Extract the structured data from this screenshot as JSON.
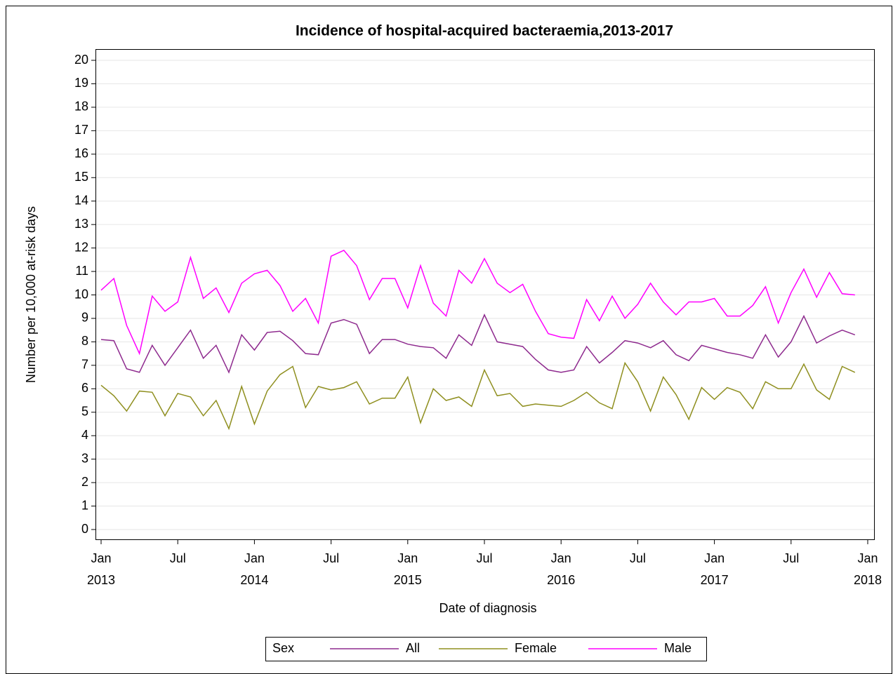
{
  "chart_data": {
    "type": "line",
    "title": "Incidence of hospital-acquired bacteraemia,2013-2017",
    "x_label": "Date of diagnosis",
    "y_label": "Number per 10,000 at-risk days",
    "legend_title": "Sex",
    "x": [
      "2013-01",
      "2013-02",
      "2013-03",
      "2013-04",
      "2013-05",
      "2013-06",
      "2013-07",
      "2013-08",
      "2013-09",
      "2013-10",
      "2013-11",
      "2013-12",
      "2014-01",
      "2014-02",
      "2014-03",
      "2014-04",
      "2014-05",
      "2014-06",
      "2014-07",
      "2014-08",
      "2014-09",
      "2014-10",
      "2014-11",
      "2014-12",
      "2015-01",
      "2015-02",
      "2015-03",
      "2015-04",
      "2015-05",
      "2015-06",
      "2015-07",
      "2015-08",
      "2015-09",
      "2015-10",
      "2015-11",
      "2015-12",
      "2016-01",
      "2016-02",
      "2016-03",
      "2016-04",
      "2016-05",
      "2016-06",
      "2016-07",
      "2016-08",
      "2016-09",
      "2016-10",
      "2016-11",
      "2016-12",
      "2017-01",
      "2017-02",
      "2017-03",
      "2017-04",
      "2017-05",
      "2017-06",
      "2017-07",
      "2017-08",
      "2017-09",
      "2017-10",
      "2017-11",
      "2017-12"
    ],
    "series": [
      {
        "name": "All",
        "color": "#8e2a8e",
        "values": [
          8.1,
          8.05,
          6.85,
          6.7,
          7.85,
          7.0,
          7.75,
          8.5,
          7.3,
          7.85,
          6.7,
          8.3,
          7.65,
          8.4,
          8.45,
          8.05,
          7.5,
          7.45,
          8.8,
          8.95,
          8.75,
          7.5,
          8.1,
          8.1,
          7.9,
          7.8,
          7.75,
          7.3,
          8.3,
          7.85,
          9.15,
          8.0,
          7.9,
          7.8,
          7.25,
          6.8,
          6.7,
          6.8,
          7.8,
          7.1,
          7.55,
          8.05,
          7.95,
          7.75,
          8.05,
          7.45,
          7.2,
          7.85,
          7.7,
          7.55,
          7.45,
          7.3,
          8.3,
          7.35,
          8.0,
          9.1,
          7.95,
          8.25,
          8.5,
          8.3
        ]
      },
      {
        "name": "Female",
        "color": "#8f8f1f",
        "values": [
          6.15,
          5.7,
          5.05,
          5.9,
          5.85,
          4.85,
          5.8,
          5.65,
          4.85,
          5.5,
          4.3,
          6.1,
          4.5,
          5.9,
          6.6,
          6.95,
          5.2,
          6.1,
          5.95,
          6.05,
          6.3,
          5.35,
          5.6,
          5.6,
          6.5,
          4.55,
          6.0,
          5.5,
          5.65,
          5.25,
          6.8,
          5.7,
          5.8,
          5.25,
          5.35,
          5.3,
          5.25,
          5.5,
          5.85,
          5.4,
          5.15,
          7.1,
          6.3,
          5.05,
          6.5,
          5.75,
          4.7,
          6.05,
          5.55,
          6.05,
          5.85,
          5.15,
          6.3,
          6.0,
          6.0,
          7.05,
          5.95,
          5.55,
          6.95,
          6.7
        ]
      },
      {
        "name": "Male",
        "color": "#ff00ff",
        "values": [
          10.2,
          10.7,
          8.7,
          7.5,
          9.95,
          9.3,
          9.7,
          11.6,
          9.85,
          10.3,
          9.25,
          10.5,
          10.9,
          11.05,
          10.4,
          9.3,
          9.85,
          8.8,
          11.65,
          11.9,
          11.25,
          9.8,
          10.7,
          10.7,
          9.45,
          11.25,
          9.65,
          9.1,
          11.05,
          10.5,
          11.55,
          10.5,
          10.1,
          10.45,
          9.3,
          8.35,
          8.2,
          8.15,
          9.8,
          8.9,
          9.95,
          9.0,
          9.6,
          10.5,
          9.7,
          9.15,
          9.7,
          9.7,
          9.85,
          9.1,
          9.1,
          9.55,
          10.35,
          8.8,
          10.1,
          11.1,
          9.9,
          10.95,
          10.05,
          10.0
        ]
      }
    ],
    "xlim": [
      "2013-01",
      "2018-01"
    ],
    "xticks": [
      {
        "value": "2013-01",
        "label": [
          "Jan",
          "2013"
        ]
      },
      {
        "value": "2013-07",
        "label": [
          "Jul"
        ]
      },
      {
        "value": "2014-01",
        "label": [
          "Jan",
          "2014"
        ]
      },
      {
        "value": "2014-07",
        "label": [
          "Jul"
        ]
      },
      {
        "value": "2015-01",
        "label": [
          "Jan",
          "2015"
        ]
      },
      {
        "value": "2015-07",
        "label": [
          "Jul"
        ]
      },
      {
        "value": "2016-01",
        "label": [
          "Jan",
          "2016"
        ]
      },
      {
        "value": "2016-07",
        "label": [
          "Jul"
        ]
      },
      {
        "value": "2017-01",
        "label": [
          "Jan",
          "2017"
        ]
      },
      {
        "value": "2017-07",
        "label": [
          "Jul"
        ]
      },
      {
        "value": "2018-01",
        "label": [
          "Jan",
          "2018"
        ]
      }
    ],
    "ylim": [
      0,
      20
    ],
    "yticks": [
      0,
      1,
      2,
      3,
      4,
      5,
      6,
      7,
      8,
      9,
      10,
      11,
      12,
      13,
      14,
      15,
      16,
      17,
      18,
      19,
      20
    ],
    "grid": true
  }
}
